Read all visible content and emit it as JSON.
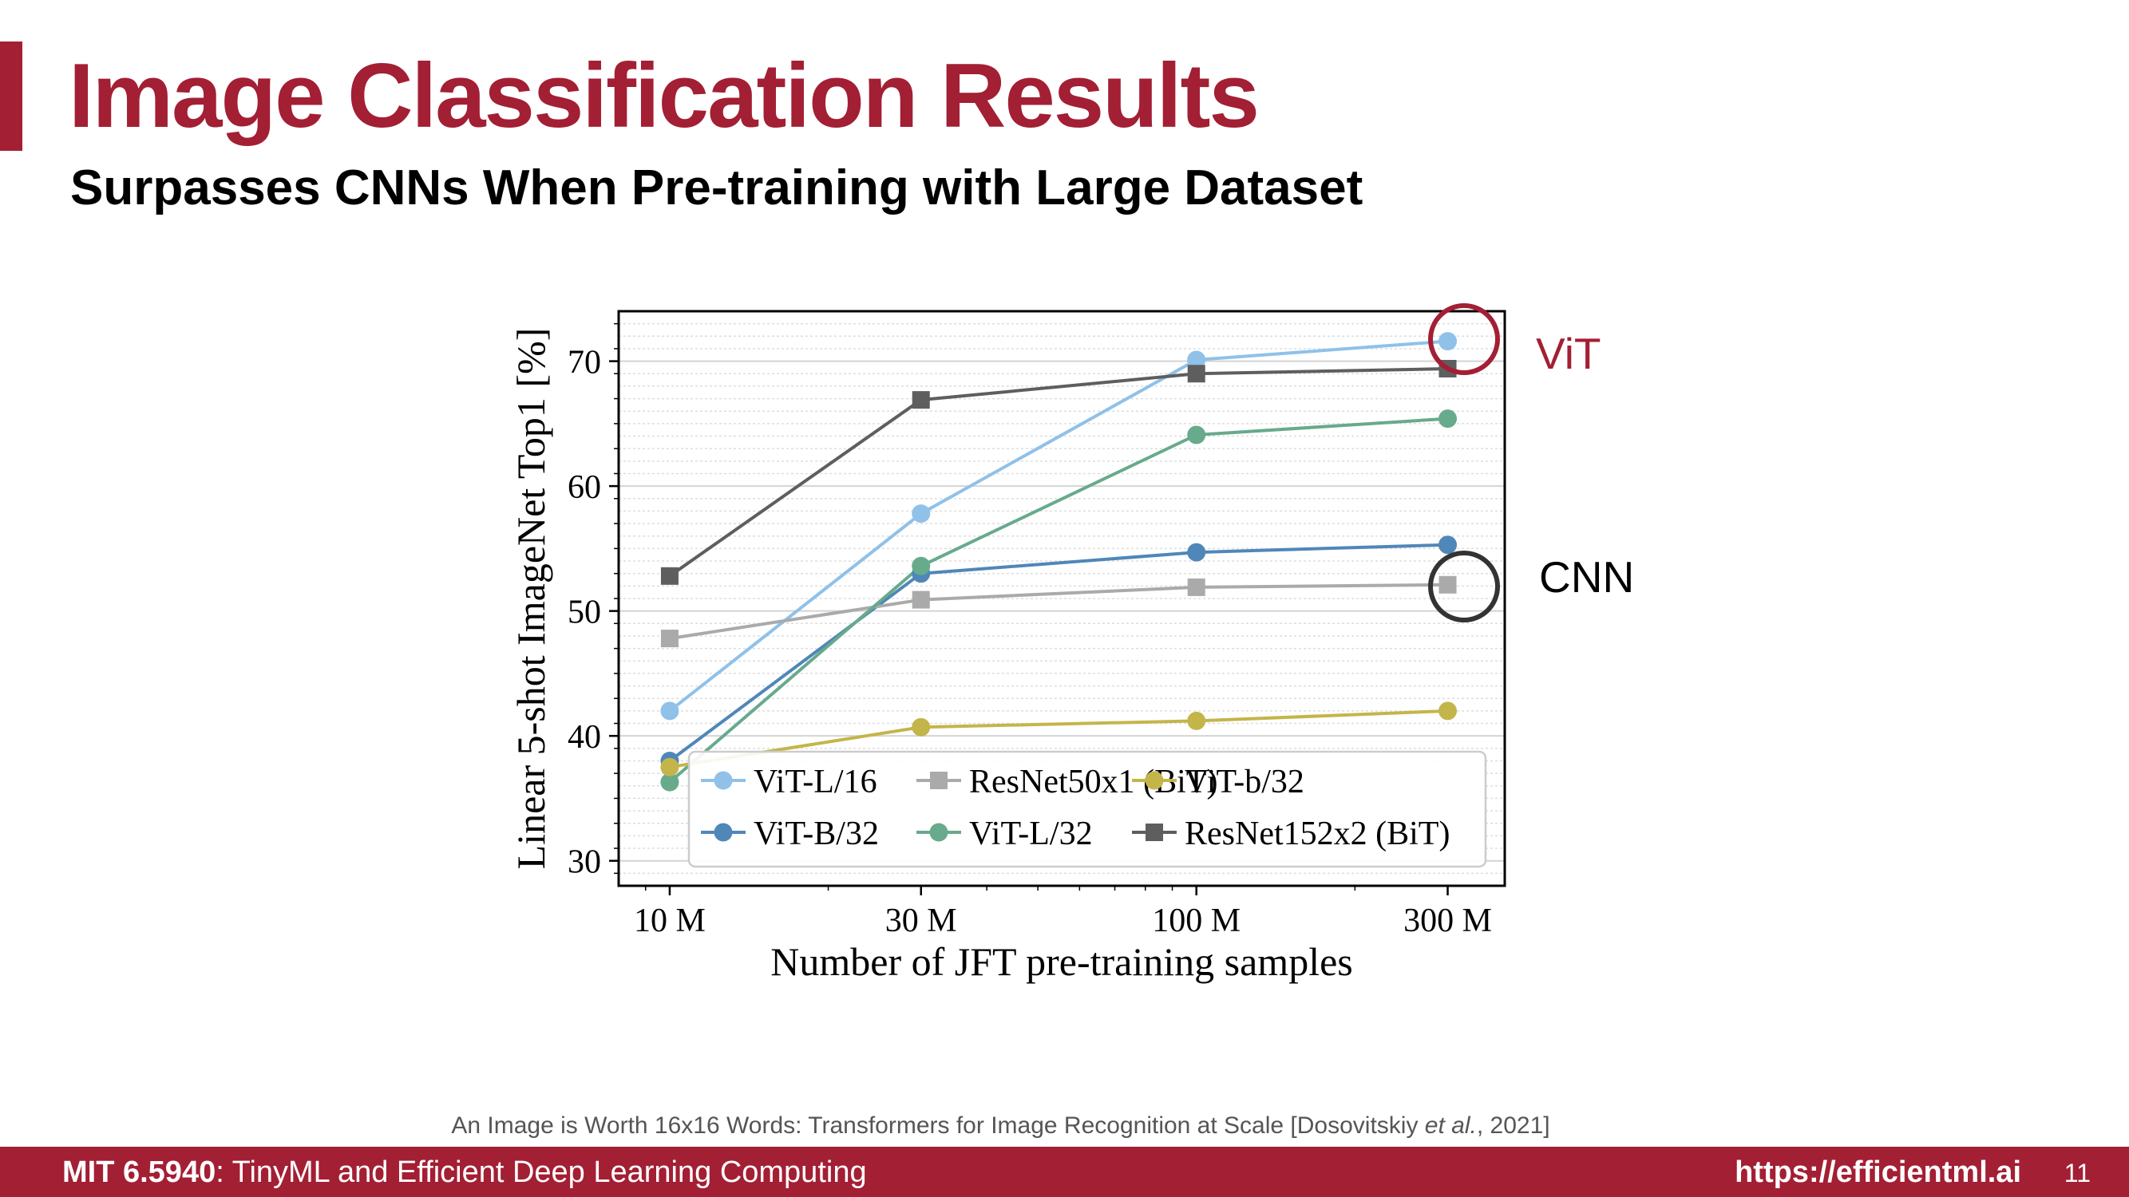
{
  "slide": {
    "title": "Image Classification Results",
    "subtitle": "Surpasses CNNs When Pre-training with Large Dataset",
    "citation_pre": "An Image is Worth 16x16 Words: Transformers for Image Recognition at Scale [Dosovitskiy ",
    "citation_italic": "et al.",
    "citation_post": ", 2021]",
    "footer_course_code": "MIT 6.5940",
    "footer_course_name": ": TinyML and Efficient Deep Learning Computing",
    "footer_url": "https://efficientml.ai",
    "page_number": "11"
  },
  "annotations": {
    "vit_label": "ViT",
    "cnn_label": "CNN",
    "vit_color": "#a31f34",
    "cnn_color": "#333333"
  },
  "chart_data": {
    "type": "line",
    "xlabel": "Number of JFT pre-training samples",
    "ylabel": "Linear 5-shot ImageNet Top1 [%]",
    "x_scale": "log",
    "x": [
      10,
      30,
      100,
      300
    ],
    "x_tick_labels": [
      "10 M",
      "30 M",
      "100 M",
      "300 M"
    ],
    "ylim": [
      28,
      74
    ],
    "y_ticks": [
      30,
      40,
      50,
      60,
      70
    ],
    "grid": true,
    "legend_placement": "bottom-right",
    "series": [
      {
        "name": "ViT-L/16",
        "marker": "circle",
        "color": "#8fc1e9",
        "values": [
          42,
          57.8,
          70.1,
          71.6
        ]
      },
      {
        "name": "ViT-B/32",
        "marker": "circle",
        "color": "#4f87b8",
        "values": [
          38,
          53,
          54.7,
          55.3
        ]
      },
      {
        "name": "ResNet50x1 (BiT)",
        "marker": "square",
        "color": "#aaaaaa",
        "values": [
          47.8,
          50.9,
          51.9,
          52.1
        ]
      },
      {
        "name": "ViT-L/32",
        "marker": "circle",
        "color": "#67aa8c",
        "values": [
          36.3,
          53.6,
          64.1,
          65.4
        ]
      },
      {
        "name": "ViT-b/32",
        "marker": "circle",
        "color": "#c4b54a",
        "values": [
          37.5,
          40.7,
          41.2,
          42
        ]
      },
      {
        "name": "ResNet152x2 (BiT)",
        "marker": "square",
        "color": "#5e5e5e",
        "values": [
          52.8,
          66.9,
          69,
          69.4
        ]
      }
    ]
  }
}
